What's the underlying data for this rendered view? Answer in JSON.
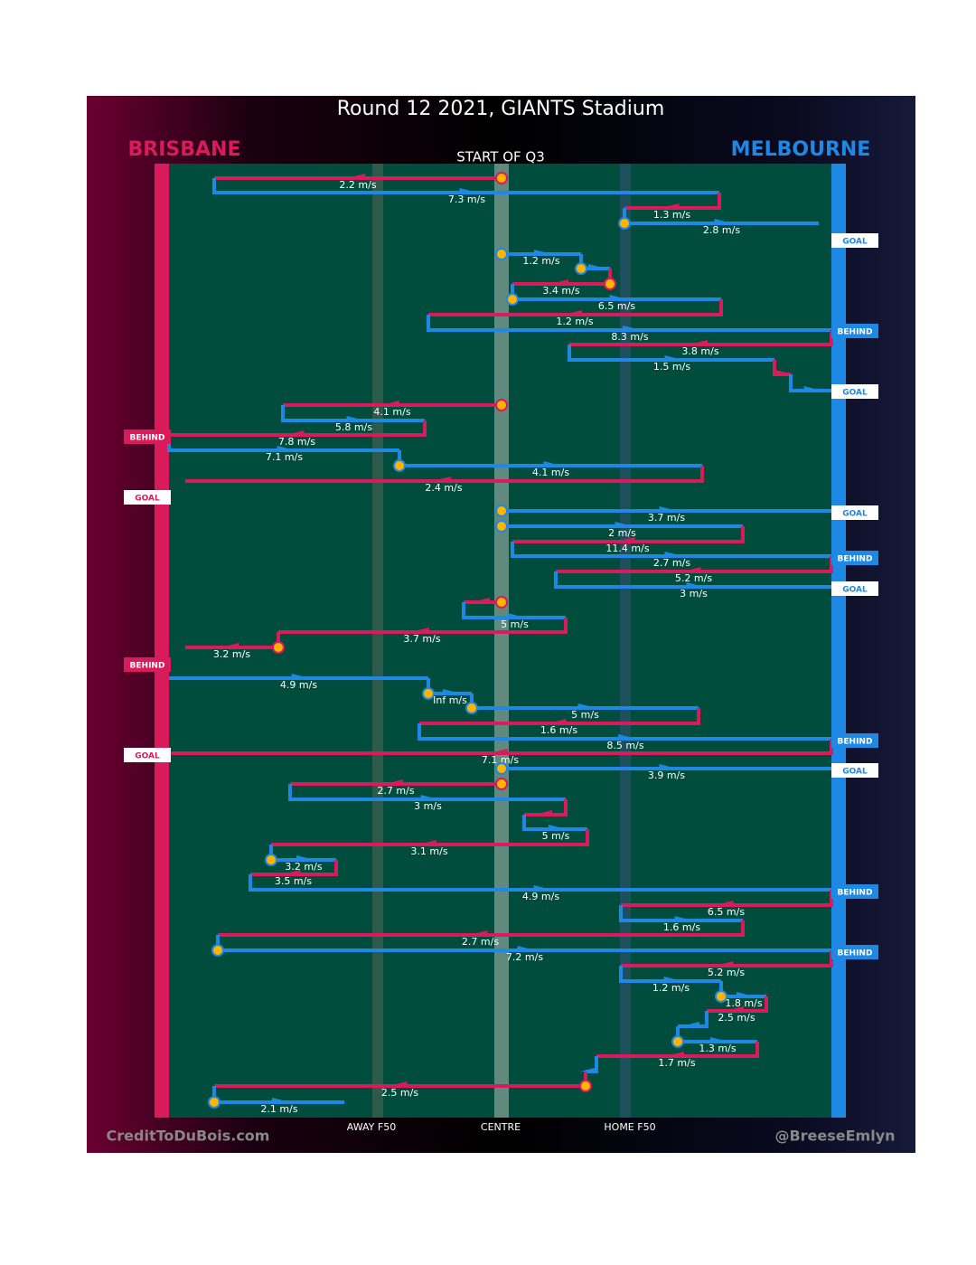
{
  "header": {
    "title": "Round 12 2021, GIANTS Stadium",
    "left_team": "BRISBANE",
    "right_team": "MELBOURNE",
    "start_label": "START OF Q3"
  },
  "speed_labels": [
    "2.2 m/s",
    "7.3 m/s",
    "1.3 m/s",
    "2.8 m/s",
    "1.2 m/s",
    "3.4 m/s",
    "6.5 m/s",
    "1.2 m/s",
    "8.3 m/s",
    "3.8 m/s",
    "1.5 m/s",
    "4.1 m/s",
    "5.8 m/s",
    "7.8 m/s",
    "7.1 m/s",
    "4.1 m/s",
    "2.4 m/s",
    "3.7 m/s",
    "2 m/s",
    "11.4 m/s",
    "2.7 m/s",
    "5.2 m/s",
    "3 m/s",
    "5 m/s",
    "3.7 m/s",
    "3.2 m/s",
    "4.9 m/s",
    "Inf m/s",
    "5 m/s",
    "1.6 m/s",
    "8.5 m/s",
    "7.1 m/s",
    "3.9 m/s",
    "2.7 m/s",
    "3 m/s",
    "5 m/s",
    "3.1 m/s",
    "3.2 m/s",
    "3.5 m/s",
    "4.9 m/s",
    "6.5 m/s",
    "1.6 m/s",
    "2.7 m/s",
    "7.2 m/s",
    "5.2 m/s",
    "1.2 m/s",
    "1.8 m/s",
    "2.5 m/s",
    "1.3 m/s",
    "1.7 m/s",
    "2.5 m/s",
    "2.1 m/s"
  ],
  "outcomes": [
    "GOAL",
    "BEHIND",
    "GOAL",
    "BEHIND",
    "GOAL",
    "GOAL",
    "BEHIND",
    "GOAL",
    "BEHIND",
    "BEHIND",
    "GOAL",
    "GOAL",
    "BEHIND",
    "BEHIND"
  ],
  "footer": {
    "away": "AWAY F50",
    "centre": "CENTRE",
    "home": "HOME F50",
    "left_credit": "CreditToDuBois.com",
    "right_credit": "@BreeseEmlyn"
  }
}
